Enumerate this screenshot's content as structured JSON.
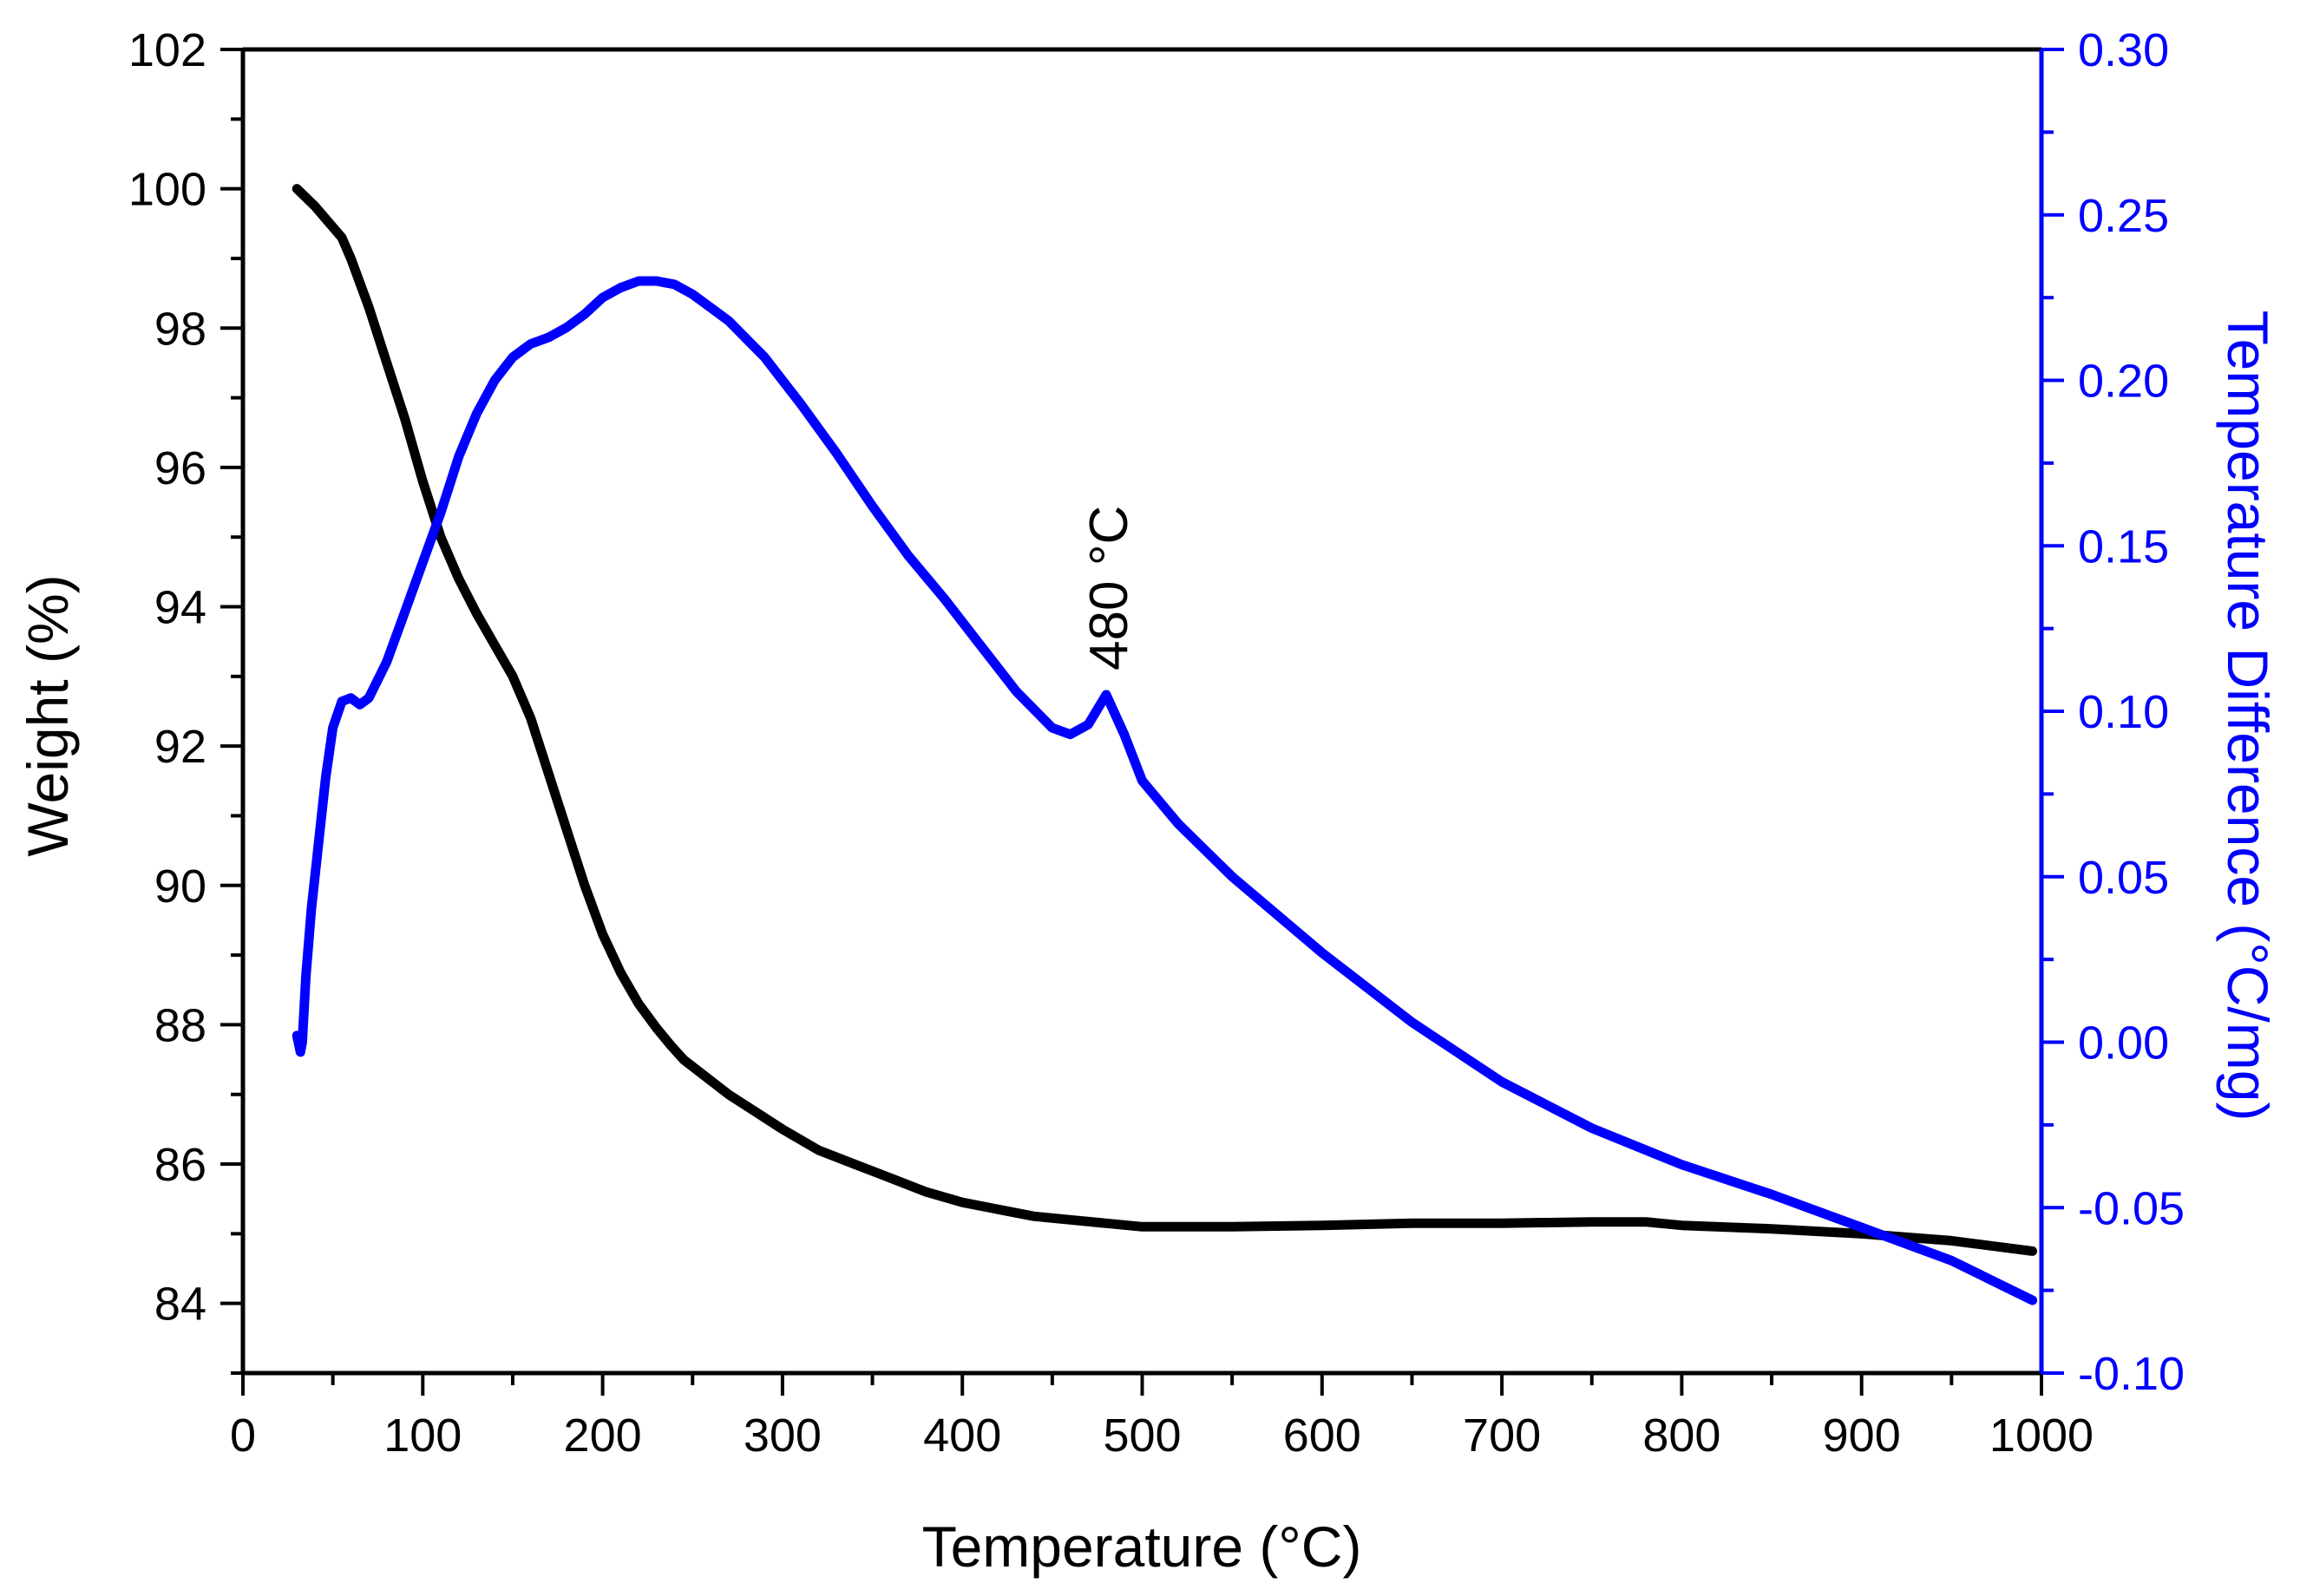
{
  "chart_data": {
    "type": "line",
    "title": "",
    "xlabel": "Temperature (°C)",
    "ylabel_left": "Weight (%)",
    "ylabel_right": "Temperature Difference (°C/mg)",
    "xlim": [
      0,
      1000
    ],
    "ylim_left": [
      83,
      102
    ],
    "ylim_right": [
      -0.1,
      0.3
    ],
    "x_ticks": [
      0,
      100,
      200,
      300,
      400,
      500,
      600,
      700,
      800,
      900,
      1000
    ],
    "x_tick_labels": [
      "0",
      "100",
      "200",
      "300",
      "400",
      "500",
      "600",
      "700",
      "800",
      "900",
      "1000"
    ],
    "y_left_ticks": [
      84,
      86,
      88,
      90,
      92,
      94,
      96,
      98,
      100,
      102
    ],
    "y_left_tick_labels": [
      "84",
      "86",
      "88",
      "90",
      "92",
      "94",
      "96",
      "98",
      "100",
      "102"
    ],
    "y_right_ticks": [
      -0.1,
      -0.05,
      0.0,
      0.05,
      0.1,
      0.15,
      0.2,
      0.25,
      0.3
    ],
    "y_right_tick_labels": [
      "-0.10",
      "-0.05",
      "0.00",
      "0.05",
      "0.10",
      "0.15",
      "0.20",
      "0.25",
      "0.30"
    ],
    "grid": false,
    "colors": {
      "weight": "#000000",
      "dta": "#0000ff"
    },
    "series": [
      {
        "name": "Weight",
        "axis": "left",
        "color": "#000000",
        "points": [
          [
            30,
            100.0
          ],
          [
            40,
            99.75
          ],
          [
            55,
            99.3
          ],
          [
            60,
            99.0
          ],
          [
            70,
            98.3
          ],
          [
            80,
            97.5
          ],
          [
            90,
            96.7
          ],
          [
            100,
            95.8
          ],
          [
            110,
            95.0
          ],
          [
            120,
            94.4
          ],
          [
            130,
            93.9
          ],
          [
            140,
            93.45
          ],
          [
            150,
            93.0
          ],
          [
            160,
            92.4
          ],
          [
            170,
            91.6
          ],
          [
            180,
            90.8
          ],
          [
            190,
            90.0
          ],
          [
            200,
            89.3
          ],
          [
            210,
            88.75
          ],
          [
            220,
            88.3
          ],
          [
            230,
            87.95
          ],
          [
            238,
            87.7
          ],
          [
            245,
            87.5
          ],
          [
            255,
            87.3
          ],
          [
            270,
            87.0
          ],
          [
            285,
            86.75
          ],
          [
            300,
            86.5
          ],
          [
            320,
            86.2
          ],
          [
            340,
            86.0
          ],
          [
            360,
            85.8
          ],
          [
            380,
            85.6
          ],
          [
            400,
            85.45
          ],
          [
            420,
            85.35
          ],
          [
            440,
            85.25
          ],
          [
            460,
            85.2
          ],
          [
            480,
            85.15
          ],
          [
            500,
            85.1
          ],
          [
            550,
            85.1
          ],
          [
            600,
            85.12
          ],
          [
            650,
            85.15
          ],
          [
            700,
            85.15
          ],
          [
            750,
            85.17
          ],
          [
            780,
            85.17
          ],
          [
            800,
            85.12
          ],
          [
            850,
            85.07
          ],
          [
            900,
            85.0
          ],
          [
            950,
            84.9
          ],
          [
            995,
            84.75
          ]
        ]
      },
      {
        "name": "Temperature Difference",
        "axis": "right",
        "color": "#0000ff",
        "points": [
          [
            30,
            0.002
          ],
          [
            32,
            -0.003
          ],
          [
            33,
            0.0
          ],
          [
            35,
            0.02
          ],
          [
            38,
            0.04
          ],
          [
            42,
            0.06
          ],
          [
            46,
            0.08
          ],
          [
            50,
            0.095
          ],
          [
            55,
            0.103
          ],
          [
            60,
            0.104
          ],
          [
            65,
            0.102
          ],
          [
            70,
            0.104
          ],
          [
            80,
            0.115
          ],
          [
            90,
            0.13
          ],
          [
            100,
            0.145
          ],
          [
            110,
            0.16
          ],
          [
            120,
            0.177
          ],
          [
            130,
            0.19
          ],
          [
            140,
            0.2
          ],
          [
            150,
            0.207
          ],
          [
            160,
            0.211
          ],
          [
            170,
            0.213
          ],
          [
            180,
            0.216
          ],
          [
            190,
            0.22
          ],
          [
            200,
            0.225
          ],
          [
            210,
            0.228
          ],
          [
            220,
            0.23
          ],
          [
            230,
            0.23
          ],
          [
            240,
            0.229
          ],
          [
            250,
            0.226
          ],
          [
            270,
            0.218
          ],
          [
            290,
            0.207
          ],
          [
            310,
            0.193
          ],
          [
            330,
            0.178
          ],
          [
            350,
            0.162
          ],
          [
            370,
            0.147
          ],
          [
            390,
            0.134
          ],
          [
            410,
            0.12
          ],
          [
            430,
            0.106
          ],
          [
            450,
            0.095
          ],
          [
            460,
            0.093
          ],
          [
            470,
            0.096
          ],
          [
            480,
            0.105
          ],
          [
            490,
            0.093
          ],
          [
            500,
            0.079
          ],
          [
            520,
            0.066
          ],
          [
            550,
            0.05
          ],
          [
            600,
            0.027
          ],
          [
            650,
            0.006
          ],
          [
            700,
            -0.012
          ],
          [
            750,
            -0.026
          ],
          [
            800,
            -0.037
          ],
          [
            850,
            -0.046
          ],
          [
            900,
            -0.056
          ],
          [
            950,
            -0.066
          ],
          [
            995,
            -0.078
          ]
        ]
      }
    ],
    "annotations": [
      {
        "text": "480 °C",
        "x": 480,
        "y_right": 0.105,
        "rotation": -90
      }
    ]
  }
}
